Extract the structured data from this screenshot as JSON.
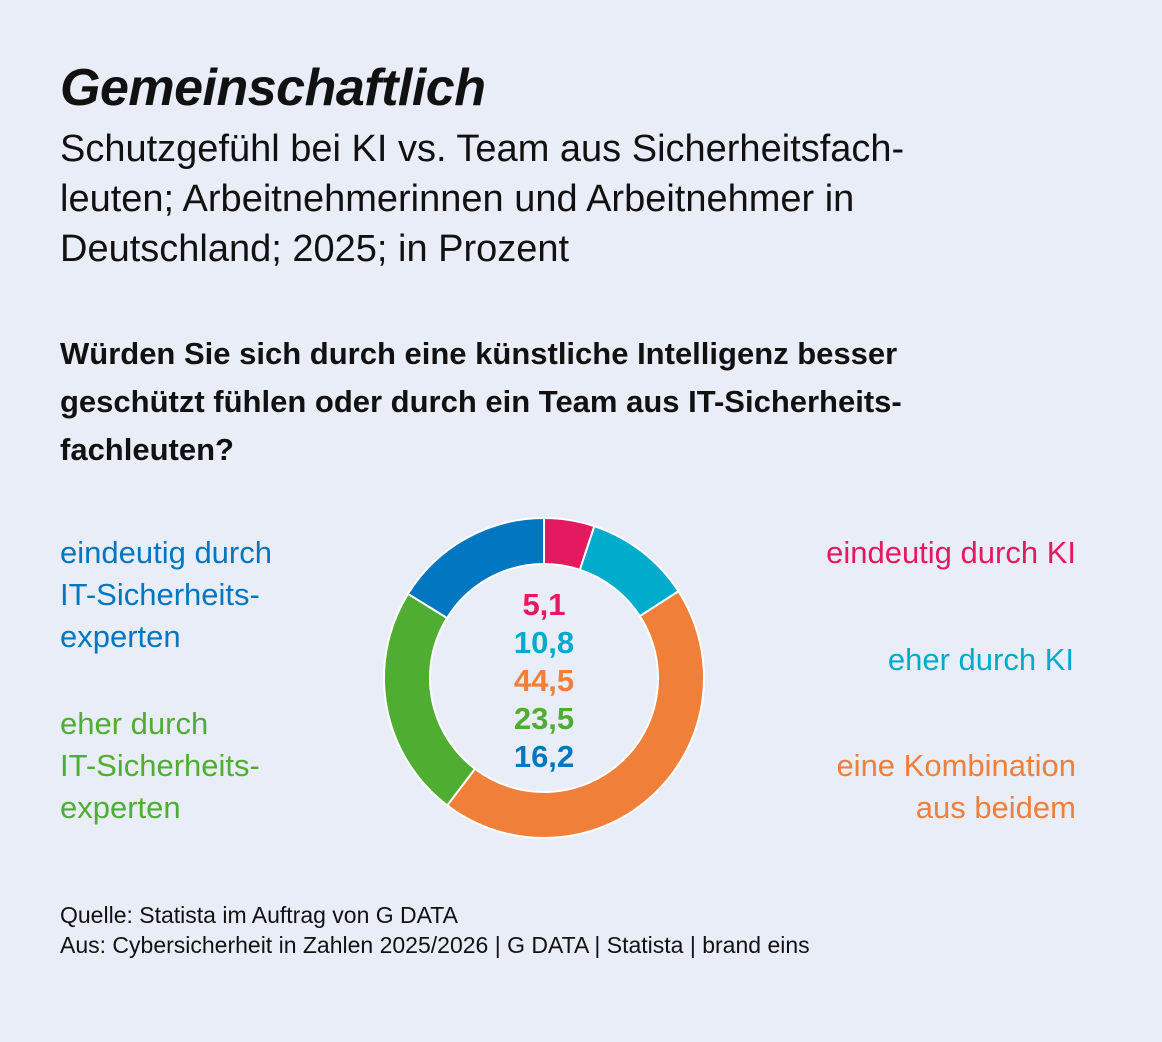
{
  "title": "Gemeinschaftlich",
  "subtitle": "Schutzgefühl bei KI vs. Team aus Sicherheitsfach-leuten; Arbeitnehmerinnen und Arbeitnehmer in Deutschland; 2025; in Prozent",
  "subtitle_lines": [
    "Schutzgefühl bei KI vs. Team aus Sicherheitsfach-",
    "leuten; Arbeitnehmerinnen und Arbeitnehmer in",
    "Deutschland; 2025; in Prozent"
  ],
  "question_lines": [
    "Würden Sie sich durch eine künstliche Intelligenz besser",
    "geschützt fühlen oder durch ein Team aus IT-Sicherheits-",
    "fachleuten?"
  ],
  "source_lines": [
    "Quelle: Statista im Auftrag von G DATA",
    "Aus: Cybersicherheit in Zahlen 2025/2026 | G DATA | Statista | brand eins"
  ],
  "chart_data": {
    "type": "pie",
    "variant": "donut",
    "unit": "Prozent",
    "categories": [
      "eindeutig durch KI",
      "eher durch KI",
      "eine Kombination aus beidem",
      "eher durch IT-Sicherheitsexperten",
      "eindeutig durch IT-Sicherheitsexperten"
    ],
    "values": [
      5.1,
      10.8,
      44.5,
      23.5,
      16.2
    ],
    "value_labels": [
      "5,1",
      "10,8",
      "44,5",
      "23,5",
      "16,2"
    ],
    "colors": [
      "#e5195f",
      "#00abcc",
      "#f07f3a",
      "#4fae32",
      "#0077c0"
    ],
    "label_lines": [
      [
        "eindeutig durch KI"
      ],
      [
        "eher durch KI"
      ],
      [
        "eine Kombination",
        "aus beidem"
      ],
      [
        "eher durch",
        "IT-Sicherheits-",
        "experten"
      ],
      [
        "eindeutig durch",
        "IT-Sicherheits-",
        "experten"
      ]
    ],
    "start": "top",
    "direction": "clockwise"
  }
}
